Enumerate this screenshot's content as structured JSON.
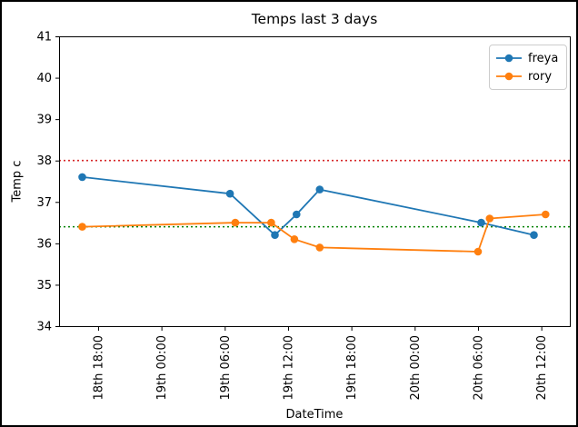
{
  "figure": {
    "title": "Temps last 3 days",
    "xlabel": "DateTime",
    "ylabel": "Temp c",
    "background_color": "#ffffff",
    "border_color": "#000000"
  },
  "legend": {
    "position": "upper right",
    "entries": [
      "freya",
      "rory"
    ]
  },
  "chart_data": {
    "type": "line",
    "title": "Temps last 3 days",
    "xlabel": "DateTime",
    "ylabel": "Temp c",
    "grid": false,
    "legend_position": "upper right",
    "x_unit": "hours since 18th 00:00",
    "xlim": [
      14.3,
      62.7
    ],
    "ylim": [
      34,
      41
    ],
    "y_ticks": [
      34,
      35,
      36,
      37,
      38,
      39,
      40,
      41
    ],
    "x_ticks": [
      {
        "hour": 18,
        "label": "18th 18:00"
      },
      {
        "hour": 24,
        "label": "19th 00:00"
      },
      {
        "hour": 30,
        "label": "19th 06:00"
      },
      {
        "hour": 36,
        "label": "19th 12:00"
      },
      {
        "hour": 42,
        "label": "19th 18:00"
      },
      {
        "hour": 48,
        "label": "20th 00:00"
      },
      {
        "hour": 54,
        "label": "20th 06:00"
      },
      {
        "hour": 60,
        "label": "20th 12:00"
      }
    ],
    "series": [
      {
        "name": "freya",
        "color": "#1f77b4",
        "marker": "circle",
        "points": [
          {
            "time": "18th 16:30",
            "hour": 16.5,
            "temp": 37.6
          },
          {
            "time": "19th 06:30",
            "hour": 30.5,
            "temp": 37.2
          },
          {
            "time": "19th 10:45",
            "hour": 34.75,
            "temp": 36.2
          },
          {
            "time": "19th 12:50",
            "hour": 36.8,
            "temp": 36.7
          },
          {
            "time": "19th 15:00",
            "hour": 39.0,
            "temp": 37.3
          },
          {
            "time": "20th 06:20",
            "hour": 54.3,
            "temp": 36.5
          },
          {
            "time": "20th 11:20",
            "hour": 59.3,
            "temp": 36.2
          }
        ]
      },
      {
        "name": "rory",
        "color": "#ff7f0e",
        "marker": "circle",
        "points": [
          {
            "time": "18th 16:30",
            "hour": 16.5,
            "temp": 36.4
          },
          {
            "time": "19th 07:00",
            "hour": 31.0,
            "temp": 36.5
          },
          {
            "time": "19th 10:25",
            "hour": 34.4,
            "temp": 36.5
          },
          {
            "time": "19th 12:40",
            "hour": 36.6,
            "temp": 36.1
          },
          {
            "time": "19th 15:00",
            "hour": 39.0,
            "temp": 35.9
          },
          {
            "time": "20th 06:00",
            "hour": 54.0,
            "temp": 35.8
          },
          {
            "time": "20th 07:05",
            "hour": 55.1,
            "temp": 36.6
          },
          {
            "time": "20th 12:25",
            "hour": 60.4,
            "temp": 36.7
          }
        ]
      }
    ],
    "reference_lines": [
      {
        "y": 38.0,
        "color": "#d62728",
        "style": "dotted"
      },
      {
        "y": 36.4,
        "color": "#008000",
        "style": "dotted"
      }
    ]
  }
}
